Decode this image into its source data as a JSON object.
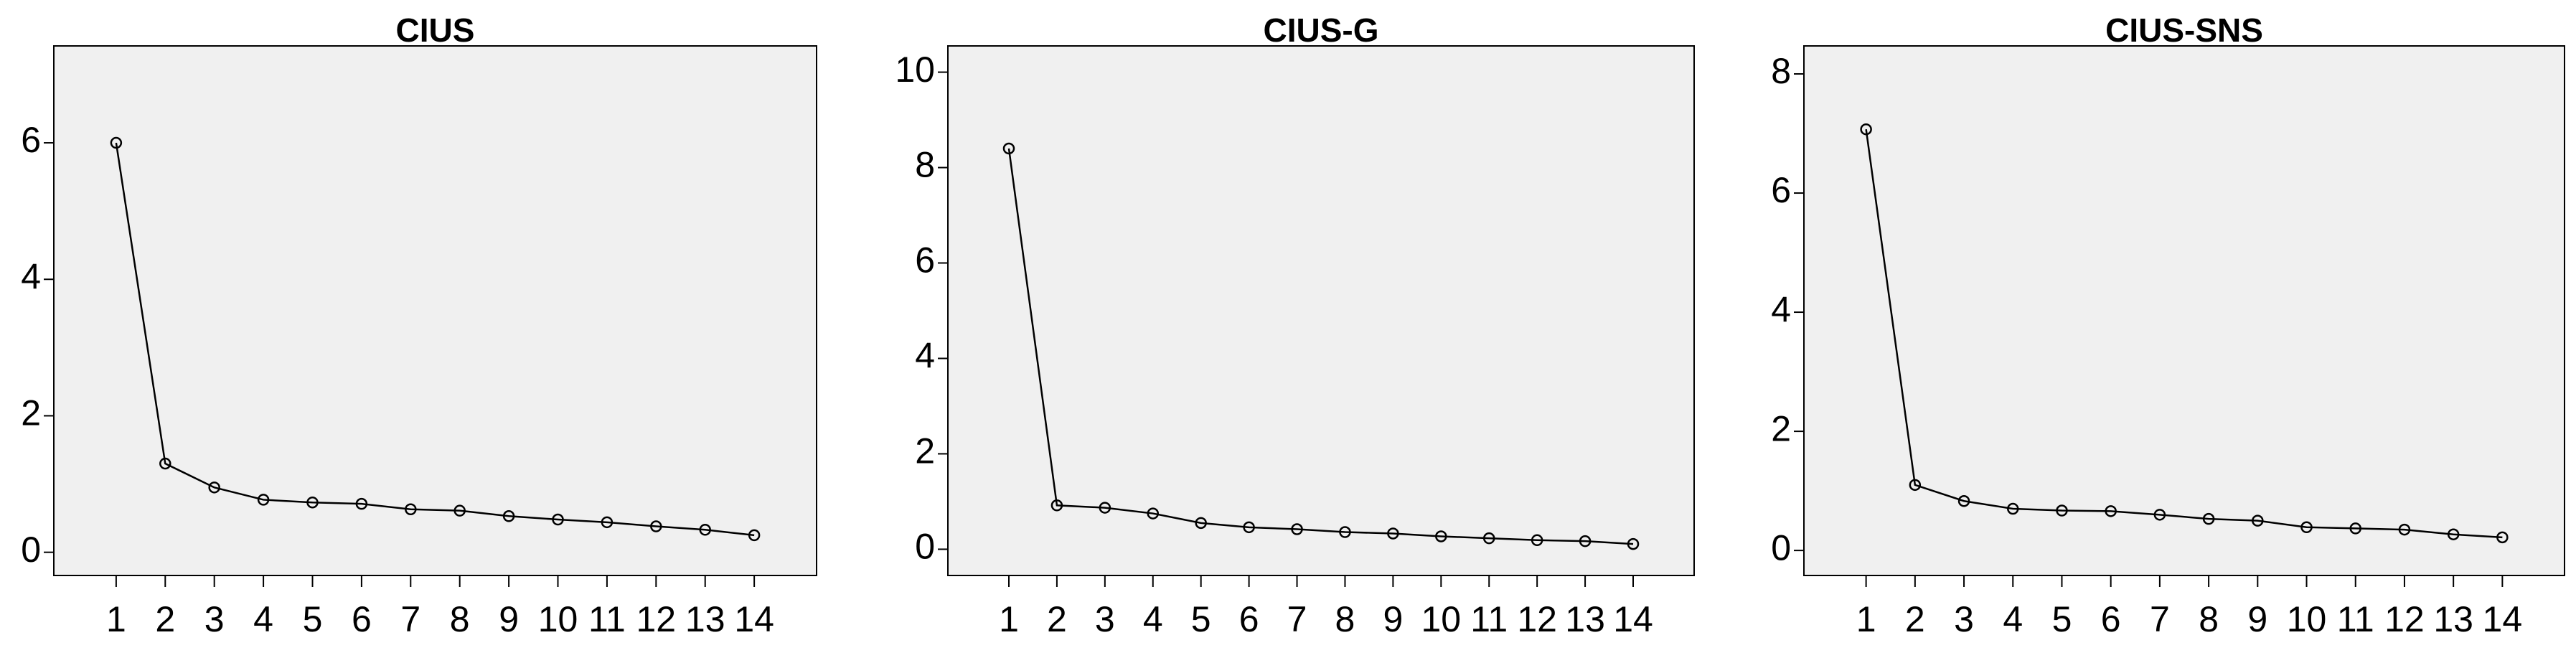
{
  "chart_data": [
    {
      "type": "line",
      "title": "CIUS",
      "x": [
        1,
        2,
        3,
        4,
        5,
        6,
        7,
        8,
        9,
        10,
        11,
        12,
        13,
        14
      ],
      "values": [
        6.0,
        1.3,
        0.95,
        0.77,
        0.73,
        0.71,
        0.63,
        0.61,
        0.53,
        0.48,
        0.44,
        0.38,
        0.33,
        0.25
      ],
      "xlim": [
        -0.27,
        15.27
      ],
      "xticks": [
        1,
        2,
        3,
        4,
        5,
        6,
        7,
        8,
        9,
        10,
        11,
        12,
        13,
        14
      ],
      "ylim": [
        -0.34,
        7.42
      ],
      "yticks": [
        0,
        2,
        4,
        6
      ],
      "color": "#000000"
    },
    {
      "type": "line",
      "title": "CIUS-G",
      "x": [
        1,
        2,
        3,
        4,
        5,
        6,
        7,
        8,
        9,
        10,
        11,
        12,
        13,
        14
      ],
      "values": [
        8.4,
        0.92,
        0.87,
        0.75,
        0.55,
        0.46,
        0.42,
        0.36,
        0.33,
        0.27,
        0.23,
        0.19,
        0.17,
        0.11
      ],
      "xlim": [
        -0.27,
        15.27
      ],
      "xticks": [
        1,
        2,
        3,
        4,
        5,
        6,
        7,
        8,
        9,
        10,
        11,
        12,
        13,
        14
      ],
      "ylim": [
        -0.55,
        10.55
      ],
      "yticks": [
        0,
        2,
        4,
        6,
        8,
        10
      ],
      "color": "#000000"
    },
    {
      "type": "line",
      "title": "CIUS-SNS",
      "x": [
        1,
        2,
        3,
        4,
        5,
        6,
        7,
        8,
        9,
        10,
        11,
        12,
        13,
        14
      ],
      "values": [
        7.07,
        1.1,
        0.83,
        0.7,
        0.67,
        0.66,
        0.6,
        0.53,
        0.5,
        0.39,
        0.37,
        0.35,
        0.27,
        0.22
      ],
      "xlim": [
        -0.27,
        15.27
      ],
      "xticks": [
        1,
        2,
        3,
        4,
        5,
        6,
        7,
        8,
        9,
        10,
        11,
        12,
        13,
        14
      ],
      "ylim": [
        -0.42,
        8.47
      ],
      "yticks": [
        0,
        2,
        4,
        6,
        8
      ],
      "color": "#000000"
    }
  ]
}
